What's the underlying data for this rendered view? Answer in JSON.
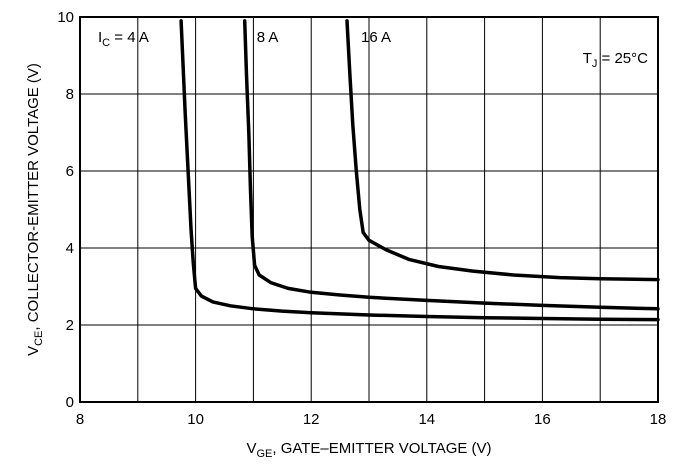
{
  "chart_data": {
    "type": "line",
    "title": "",
    "xlabel": {
      "main": "V",
      "sub": "GE",
      "rest": ", GATE–EMITTER VOLTAGE (V)"
    },
    "ylabel": {
      "main": "V",
      "sub": "CE",
      "rest": ", COLLECTOR-EMITTER VOLTAGE (V)"
    },
    "xlim": [
      8,
      18
    ],
    "ylim": [
      0,
      10
    ],
    "x_ticks": [
      8,
      10,
      12,
      14,
      16,
      18
    ],
    "y_ticks": [
      0,
      2,
      4,
      6,
      8,
      10
    ],
    "grid": true,
    "annotation": {
      "main": "T",
      "sub": "J",
      "rest": " = 25°C"
    },
    "series": [
      {
        "name": "4 A",
        "label": {
          "main": "I",
          "sub": "C",
          "rest": " = 4 A"
        },
        "x": [
          9.75,
          9.82,
          9.87,
          9.92,
          9.96,
          10.0,
          10.1,
          10.3,
          10.6,
          11.0,
          11.5,
          12.0,
          13.0,
          14.0,
          15.0,
          16.0,
          17.0,
          18.0
        ],
        "y": [
          9.9,
          7.5,
          6.0,
          4.5,
          3.6,
          2.95,
          2.75,
          2.6,
          2.5,
          2.42,
          2.36,
          2.32,
          2.26,
          2.22,
          2.19,
          2.17,
          2.15,
          2.14
        ]
      },
      {
        "name": "8 A",
        "label": {
          "main": "",
          "sub": "",
          "rest": "8 A"
        },
        "x": [
          10.85,
          10.88,
          10.92,
          10.95,
          10.98,
          11.02,
          11.1,
          11.3,
          11.6,
          12.0,
          12.5,
          13.0,
          14.0,
          15.0,
          16.0,
          17.0,
          18.0
        ],
        "y": [
          9.9,
          8.5,
          7.0,
          5.5,
          4.3,
          3.55,
          3.3,
          3.1,
          2.95,
          2.85,
          2.78,
          2.72,
          2.64,
          2.57,
          2.51,
          2.46,
          2.42
        ]
      },
      {
        "name": "16 A",
        "label": {
          "main": "",
          "sub": "",
          "rest": "16 A"
        },
        "x": [
          12.62,
          12.67,
          12.72,
          12.78,
          12.84,
          12.9,
          13.0,
          13.3,
          13.7,
          14.2,
          14.8,
          15.5,
          16.3,
          17.0,
          18.0
        ],
        "y": [
          9.9,
          8.5,
          7.2,
          6.0,
          5.0,
          4.4,
          4.2,
          3.95,
          3.7,
          3.52,
          3.4,
          3.3,
          3.23,
          3.2,
          3.18
        ]
      }
    ]
  }
}
